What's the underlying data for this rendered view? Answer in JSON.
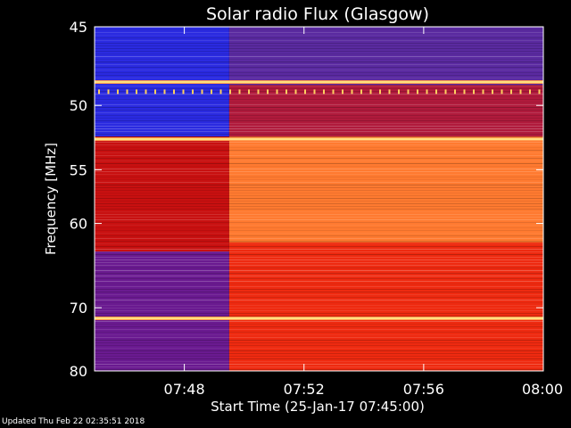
{
  "chart_data": {
    "type": "heatmap",
    "title": "Solar radio Flux (Glasgow)",
    "xlabel": "Start Time (25-Jan-17 07:45:00)",
    "ylabel": "Frequency [MHz]",
    "x_range_minutes": [
      0,
      15
    ],
    "x_ticks": [
      {
        "label": "07:48",
        "minute": 3
      },
      {
        "label": "07:52",
        "minute": 7
      },
      {
        "label": "07:56",
        "minute": 11
      },
      {
        "label": "08:00",
        "minute": 15
      }
    ],
    "y_range_mhz": [
      45,
      80
    ],
    "y_scale": "reciprocal",
    "y_ticks": [
      {
        "label": "45",
        "mhz": 45
      },
      {
        "label": "50",
        "mhz": 50
      },
      {
        "label": "55",
        "mhz": 55
      },
      {
        "label": "60",
        "mhz": 60
      },
      {
        "label": "70",
        "mhz": 70
      },
      {
        "label": "80",
        "mhz": 80
      }
    ],
    "intensity_regions": [
      {
        "x_from": 0,
        "x_to": 4.5,
        "mhz_from": 45,
        "mhz_to": 52.3,
        "level": "low",
        "color": "#2a2ae0"
      },
      {
        "x_from": 4.5,
        "x_to": 15,
        "mhz_from": 45,
        "mhz_to": 48.6,
        "level": "low-medium",
        "color": "#5a2aa0"
      },
      {
        "x_from": 4.5,
        "x_to": 15,
        "mhz_from": 48.6,
        "mhz_to": 52.3,
        "level": "medium",
        "color": "#b01a3c"
      },
      {
        "x_from": 0,
        "x_to": 4.5,
        "mhz_from": 52.3,
        "mhz_to": 63,
        "level": "medium",
        "color": "#c81010"
      },
      {
        "x_from": 0,
        "x_to": 4.5,
        "mhz_from": 63,
        "mhz_to": 80,
        "level": "low-medium",
        "color": "#6a1a90"
      },
      {
        "x_from": 4.5,
        "x_to": 15,
        "mhz_from": 52.3,
        "mhz_to": 62,
        "level": "high",
        "color": "#ff7a30"
      },
      {
        "x_from": 4.5,
        "x_to": 15,
        "mhz_from": 62,
        "mhz_to": 80,
        "level": "medium-high",
        "color": "#ee2a10"
      }
    ],
    "bright_lines_mhz": [
      48.4,
      52.5,
      71.5
    ],
    "grid": false,
    "colors": {
      "background": "#000000",
      "low": "#2a2ae0",
      "medium": "#d01818",
      "high": "#ff9040",
      "line": "#ffe080"
    }
  },
  "footer": {
    "updated": "Updated Thu Feb 22 02:35:51 2018"
  }
}
